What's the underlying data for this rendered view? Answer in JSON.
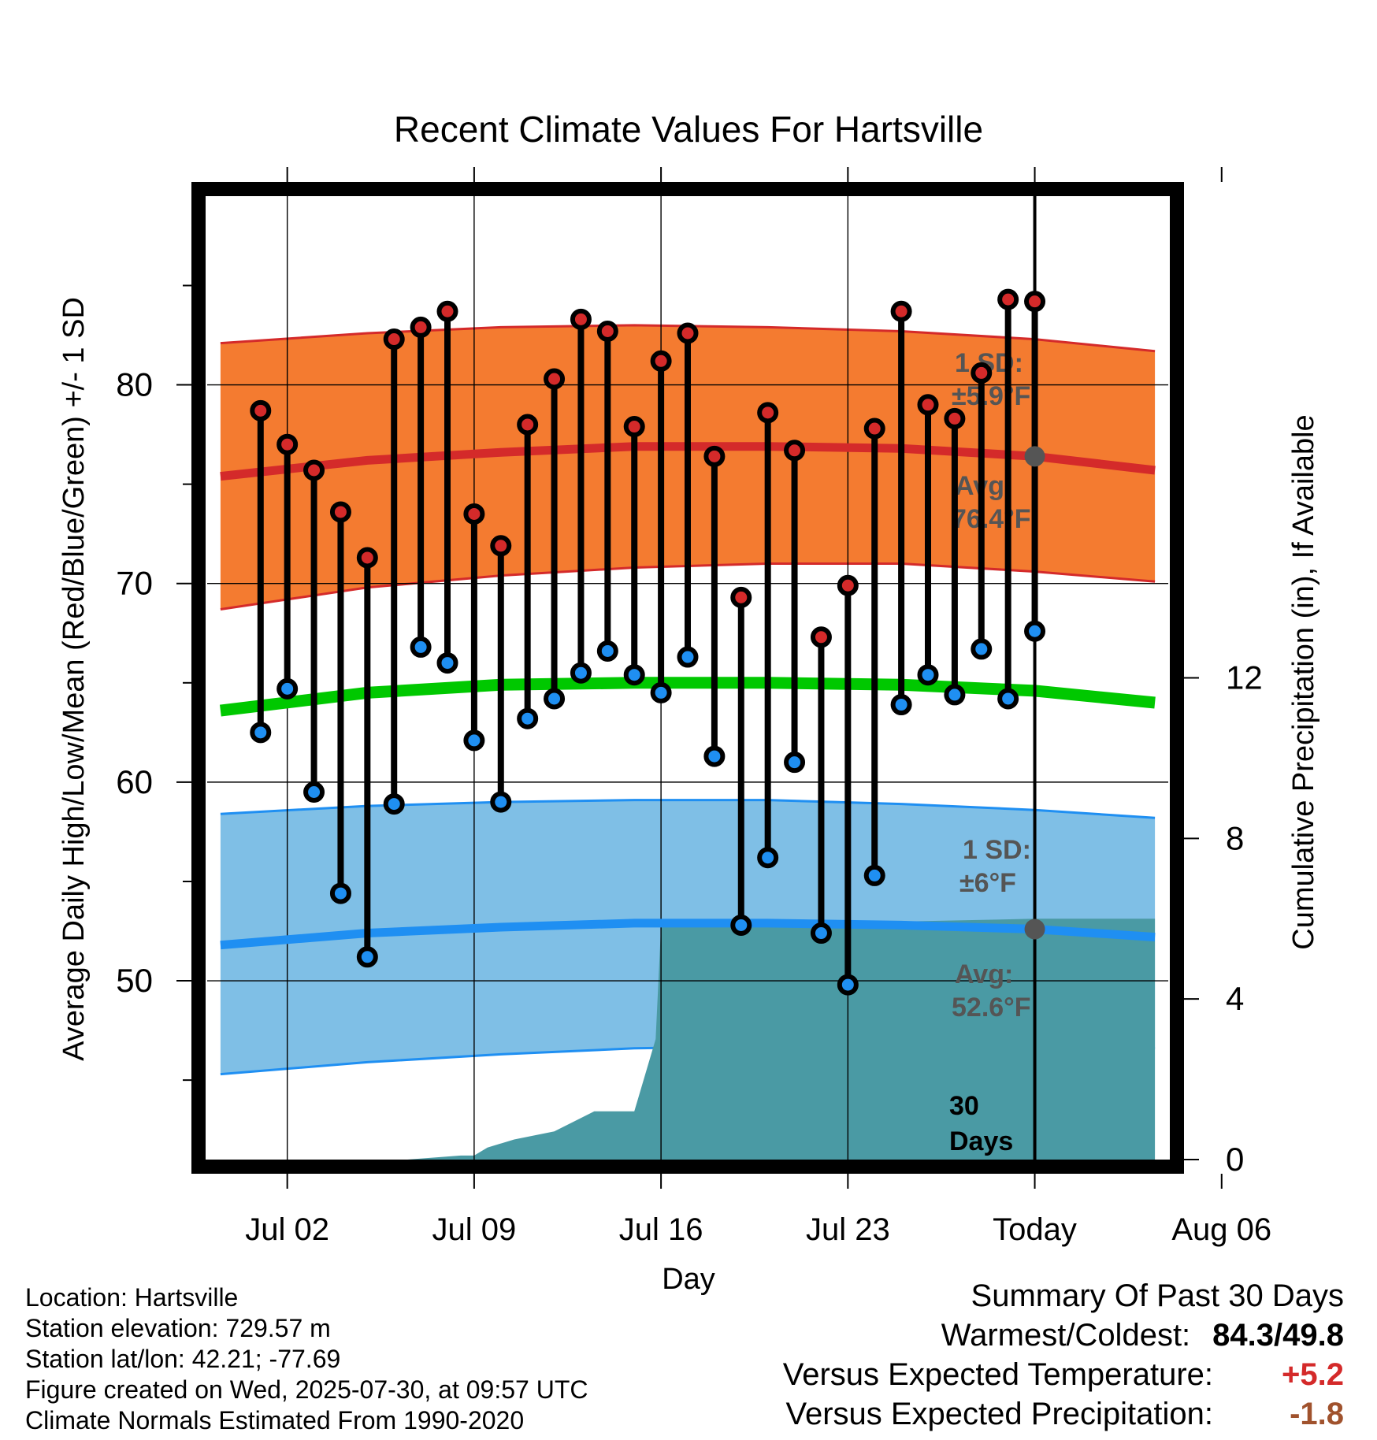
{
  "chart_data": {
    "type": "line",
    "title": "Recent Climate Values For Hartsville",
    "xlabel": "Day",
    "ylabel": "Average Daily High/Low/Mean (Red/Blue/Green) +/- 1 SD",
    "y2label": "Cumulative Precipitation (in), If Available",
    "ylim": [
      41,
      89.5
    ],
    "y2lim": [
      0,
      24
    ],
    "xlim": [
      -1,
      35
    ],
    "x_ticks": [
      {
        "day": 2,
        "label": "Jul 02"
      },
      {
        "day": 9,
        "label": "Jul 09"
      },
      {
        "day": 16,
        "label": "Jul 16"
      },
      {
        "day": 23,
        "label": "Jul 23"
      },
      {
        "day": 30,
        "label": "Today"
      },
      {
        "day": 37,
        "label": "Aug 06"
      }
    ],
    "y_ticks": [
      50,
      60,
      70,
      80
    ],
    "y_minor_ticks": [
      45,
      55,
      65,
      75,
      85
    ],
    "y2_ticks": [
      0,
      4,
      8,
      12
    ],
    "grid": true,
    "daily": {
      "days": [
        1,
        2,
        3,
        4,
        5,
        6,
        7,
        8,
        9,
        10,
        11,
        12,
        13,
        14,
        15,
        16,
        17,
        18,
        19,
        20,
        21,
        22,
        23,
        24,
        25,
        26,
        27,
        28,
        29,
        30
      ],
      "highs": [
        78.7,
        77.0,
        75.7,
        73.6,
        71.3,
        82.3,
        82.9,
        83.7,
        73.5,
        71.9,
        78.0,
        80.3,
        83.3,
        82.7,
        77.9,
        81.2,
        82.6,
        76.4,
        69.3,
        78.6,
        76.7,
        67.3,
        69.9,
        77.8,
        83.7,
        79.0,
        78.3,
        80.6,
        84.3,
        84.2
      ],
      "lows": [
        62.5,
        64.7,
        59.5,
        54.4,
        51.2,
        58.9,
        66.8,
        66.0,
        62.1,
        59.0,
        63.2,
        64.2,
        65.5,
        66.6,
        65.4,
        64.5,
        66.3,
        61.3,
        52.8,
        56.2,
        61.0,
        52.4,
        49.8,
        55.3,
        63.9,
        65.4,
        64.4,
        66.7,
        64.2,
        67.6
      ]
    },
    "normals": {
      "days": [
        -0.5,
        5,
        10,
        15,
        20,
        25,
        30,
        34.5
      ],
      "high_mean": [
        75.4,
        76.2,
        76.6,
        76.9,
        76.9,
        76.8,
        76.4,
        75.7
      ],
      "high_upper": [
        82.1,
        82.6,
        82.9,
        83.0,
        82.9,
        82.7,
        82.3,
        81.7
      ],
      "high_lower": [
        68.7,
        69.8,
        70.4,
        70.8,
        71.0,
        71.0,
        70.6,
        70.1
      ],
      "daily_mean": [
        63.6,
        64.5,
        64.9,
        65.0,
        65.0,
        64.9,
        64.6,
        64.0
      ],
      "low_mean": [
        51.8,
        52.4,
        52.7,
        52.9,
        52.9,
        52.8,
        52.6,
        52.2
      ],
      "low_upper": [
        58.4,
        58.8,
        59.0,
        59.1,
        59.1,
        58.9,
        58.6,
        58.2
      ],
      "low_lower": [
        45.3,
        45.9,
        46.3,
        46.6,
        46.7,
        46.6,
        46.6,
        46.6
      ]
    },
    "precipitation": {
      "days": [
        -0.5,
        6.5,
        8.5,
        9,
        9.5,
        10.5,
        12,
        13.5,
        15,
        15.8,
        16,
        30,
        34.5
      ],
      "cumulative": [
        0,
        0,
        0.1,
        0.1,
        0.3,
        0.5,
        0.7,
        1.2,
        1.2,
        3.0,
        5.8,
        6.0,
        6.0
      ]
    },
    "annotations": {
      "high_sd": "1 SD:",
      "high_sd_val": "±5.9°F",
      "high_avg": "Avg:",
      "high_avg_val": "76.4°F",
      "low_sd": "1 SD:",
      "low_sd_val": "±6°F",
      "low_avg": "Avg:",
      "low_avg_val": "52.6°F",
      "days_count": "30",
      "days_word": "Days"
    },
    "today_day": 30,
    "today_high_normal": 76.4,
    "today_low_normal": 52.6
  },
  "colors": {
    "high_band": "#f47b30",
    "high_line": "#d42a2a",
    "low_band": "#7fbfe6",
    "low_line": "#1f8ff2",
    "mean_line": "#00c800",
    "precip": "#4a9aa4",
    "high_dot": "#d42a2a",
    "low_dot": "#1f8ff2",
    "today_marker": "#555555",
    "annotation": "#555555",
    "positive": "#d42a2a",
    "negative": "#a0522d"
  },
  "footer": {
    "location": "Location: Hartsville",
    "elevation": "Station elevation: 729.57 m",
    "latlon": "Station lat/lon: 42.21; -77.69",
    "created": "Figure created on Wed, 2025-07-30, at 09:57 UTC",
    "normals": "Climate Normals Estimated From 1990-2020"
  },
  "summary": {
    "title": "Summary Of Past 30 Days",
    "warm_cold_label": "Warmest/Coldest:",
    "warm_cold_value": "84.3/49.8",
    "temp_label": "Versus Expected Temperature:",
    "temp_value": "+5.2",
    "precip_label": "Versus Expected Precipitation:",
    "precip_value": "-1.8"
  }
}
